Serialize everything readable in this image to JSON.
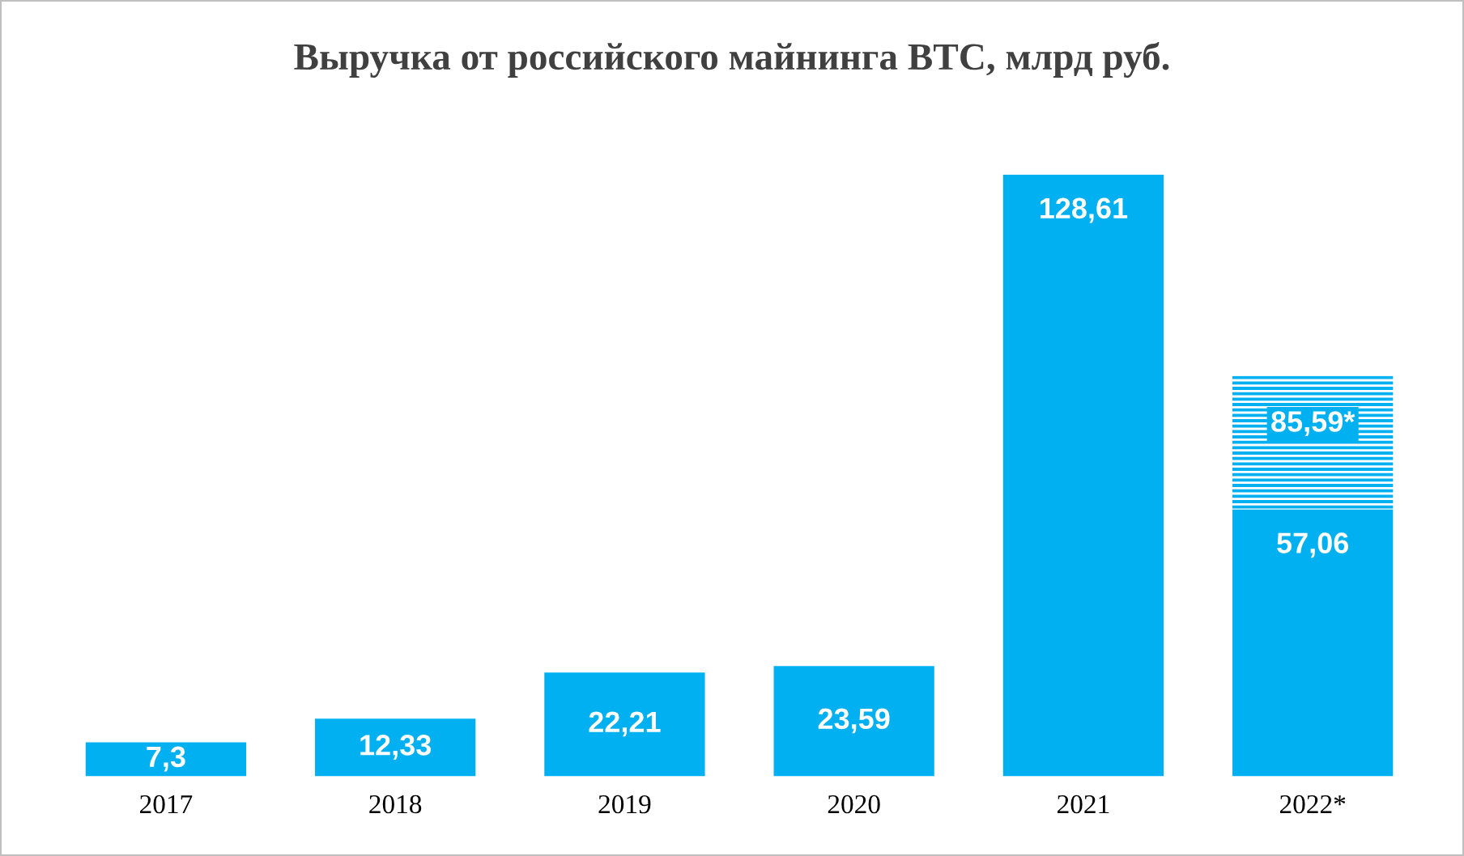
{
  "chart_data": {
    "type": "bar",
    "title": "Выручка от российского майнинга BTC, млрд руб.",
    "categories": [
      "2017",
      "2018",
      "2019",
      "2020",
      "2021",
      "2022*"
    ],
    "stacked": true,
    "series": [
      {
        "color": "#00b0f0",
        "values": [
          7.3,
          12.33,
          22.21,
          23.59,
          128.61,
          57.06
        ],
        "value_labels": [
          "7,3",
          "12,33",
          "22,21",
          "23,59",
          "128,61",
          "57,06"
        ]
      },
      {
        "color": "#00b0f0",
        "values": [
          null,
          null,
          null,
          null,
          null,
          28.53
        ]
      }
    ],
    "totals": [
      null,
      null,
      null,
      null,
      null,
      "85,59*"
    ],
    "grid": false,
    "legend": false
  }
}
